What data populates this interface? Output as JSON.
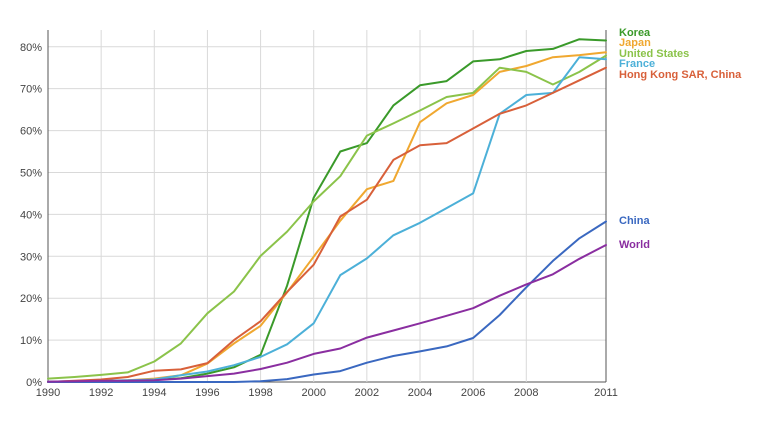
{
  "chart_data": {
    "type": "line",
    "title": "",
    "xlabel": "",
    "ylabel": "",
    "x_ticks": [
      "1990",
      "1992",
      "1994",
      "1996",
      "1998",
      "2000",
      "2002",
      "2004",
      "2006",
      "2008",
      "2011"
    ],
    "y_ticks": [
      "0%",
      "10%",
      "20%",
      "30%",
      "40%",
      "50%",
      "60%",
      "70%",
      "80%"
    ],
    "xlim": [
      1990,
      2011
    ],
    "ylim": [
      0,
      84
    ],
    "grid": true,
    "legend_placement": "right, at line ends",
    "series": [
      {
        "name": "Korea",
        "color": "#3a9a2a",
        "x": [
          1990,
          1991,
          1992,
          1993,
          1994,
          1995,
          1996,
          1997,
          1998,
          1999,
          2000,
          2001,
          2002,
          2003,
          2004,
          2005,
          2006,
          2007,
          2008,
          2009,
          2010,
          2011
        ],
        "values": [
          0.0,
          0.1,
          0.2,
          0.3,
          0.5,
          0.9,
          2.0,
          3.5,
          6.5,
          23.0,
          44.0,
          55.0,
          57.0,
          66.0,
          70.8,
          71.8,
          76.5,
          77.0,
          79.0,
          79.5,
          81.8,
          81.5
        ]
      },
      {
        "name": "Japan",
        "color": "#f0a830",
        "x": [
          1990,
          1991,
          1992,
          1993,
          1994,
          1995,
          1996,
          1997,
          1998,
          1999,
          2000,
          2001,
          2002,
          2003,
          2004,
          2005,
          2006,
          2007,
          2008,
          2009,
          2010,
          2011
        ],
        "values": [
          0.0,
          0.1,
          0.2,
          0.4,
          0.8,
          1.6,
          4.4,
          9.2,
          13.4,
          21.4,
          29.9,
          38.5,
          46.0,
          48.0,
          62.0,
          66.5,
          68.5,
          74.0,
          75.4,
          77.5,
          78.0,
          78.7
        ]
      },
      {
        "name": "United States",
        "color": "#8bc34a",
        "x": [
          1990,
          1991,
          1992,
          1993,
          1994,
          1995,
          1996,
          1997,
          1998,
          1999,
          2000,
          2001,
          2002,
          2003,
          2004,
          2005,
          2006,
          2007,
          2008,
          2009,
          2010,
          2011
        ],
        "values": [
          0.8,
          1.2,
          1.7,
          2.3,
          4.9,
          9.2,
          16.4,
          21.6,
          30.1,
          35.9,
          43.1,
          49.1,
          58.8,
          61.7,
          64.8,
          68.0,
          69.0,
          75.0,
          74.0,
          71.0,
          74.0,
          77.9
        ]
      },
      {
        "name": "France",
        "color": "#4cb0d8",
        "x": [
          1990,
          1991,
          1992,
          1993,
          1994,
          1995,
          1996,
          1997,
          1998,
          1999,
          2000,
          2001,
          2002,
          2003,
          2004,
          2005,
          2006,
          2007,
          2008,
          2009,
          2010,
          2011
        ],
        "values": [
          0.1,
          0.2,
          0.3,
          0.4,
          0.6,
          1.6,
          2.5,
          4.0,
          6.0,
          9.0,
          14.0,
          25.5,
          29.5,
          35.0,
          38.0,
          41.5,
          45.0,
          64.0,
          68.5,
          69.0,
          77.5,
          77.0
        ]
      },
      {
        "name": "Hong Kong SAR, China",
        "color": "#d8603a",
        "x": [
          1990,
          1991,
          1992,
          1993,
          1994,
          1995,
          1996,
          1997,
          1998,
          1999,
          2000,
          2001,
          2002,
          2003,
          2004,
          2005,
          2006,
          2007,
          2008,
          2009,
          2010,
          2011
        ],
        "values": [
          0.0,
          0.3,
          0.6,
          1.2,
          2.7,
          3.0,
          4.5,
          10.0,
          14.5,
          21.5,
          28.0,
          39.5,
          43.5,
          53.0,
          56.5,
          57.0,
          60.5,
          64.0,
          66.0,
          69.0,
          72.0,
          75.0
        ]
      },
      {
        "name": "China",
        "color": "#3a68c0",
        "x": [
          1990,
          1991,
          1992,
          1993,
          1994,
          1995,
          1996,
          1997,
          1998,
          1999,
          2000,
          2001,
          2002,
          2003,
          2004,
          2005,
          2006,
          2007,
          2008,
          2009,
          2010,
          2011
        ],
        "values": [
          0.0,
          0.0,
          0.0,
          0.0,
          0.0,
          0.0,
          0.0,
          0.0,
          0.2,
          0.7,
          1.8,
          2.6,
          4.6,
          6.2,
          7.3,
          8.5,
          10.5,
          16.0,
          22.6,
          28.9,
          34.3,
          38.3
        ]
      },
      {
        "name": "World",
        "color": "#8a2ea0",
        "x": [
          1990,
          1991,
          1992,
          1993,
          1994,
          1995,
          1996,
          1997,
          1998,
          1999,
          2000,
          2001,
          2002,
          2003,
          2004,
          2005,
          2006,
          2007,
          2008,
          2009,
          2010,
          2011
        ],
        "values": [
          0.1,
          0.2,
          0.3,
          0.3,
          0.4,
          0.8,
          1.4,
          2.0,
          3.1,
          4.6,
          6.7,
          8.0,
          10.6,
          12.3,
          14.0,
          15.8,
          17.6,
          20.6,
          23.3,
          25.7,
          29.4,
          32.7
        ]
      }
    ]
  }
}
